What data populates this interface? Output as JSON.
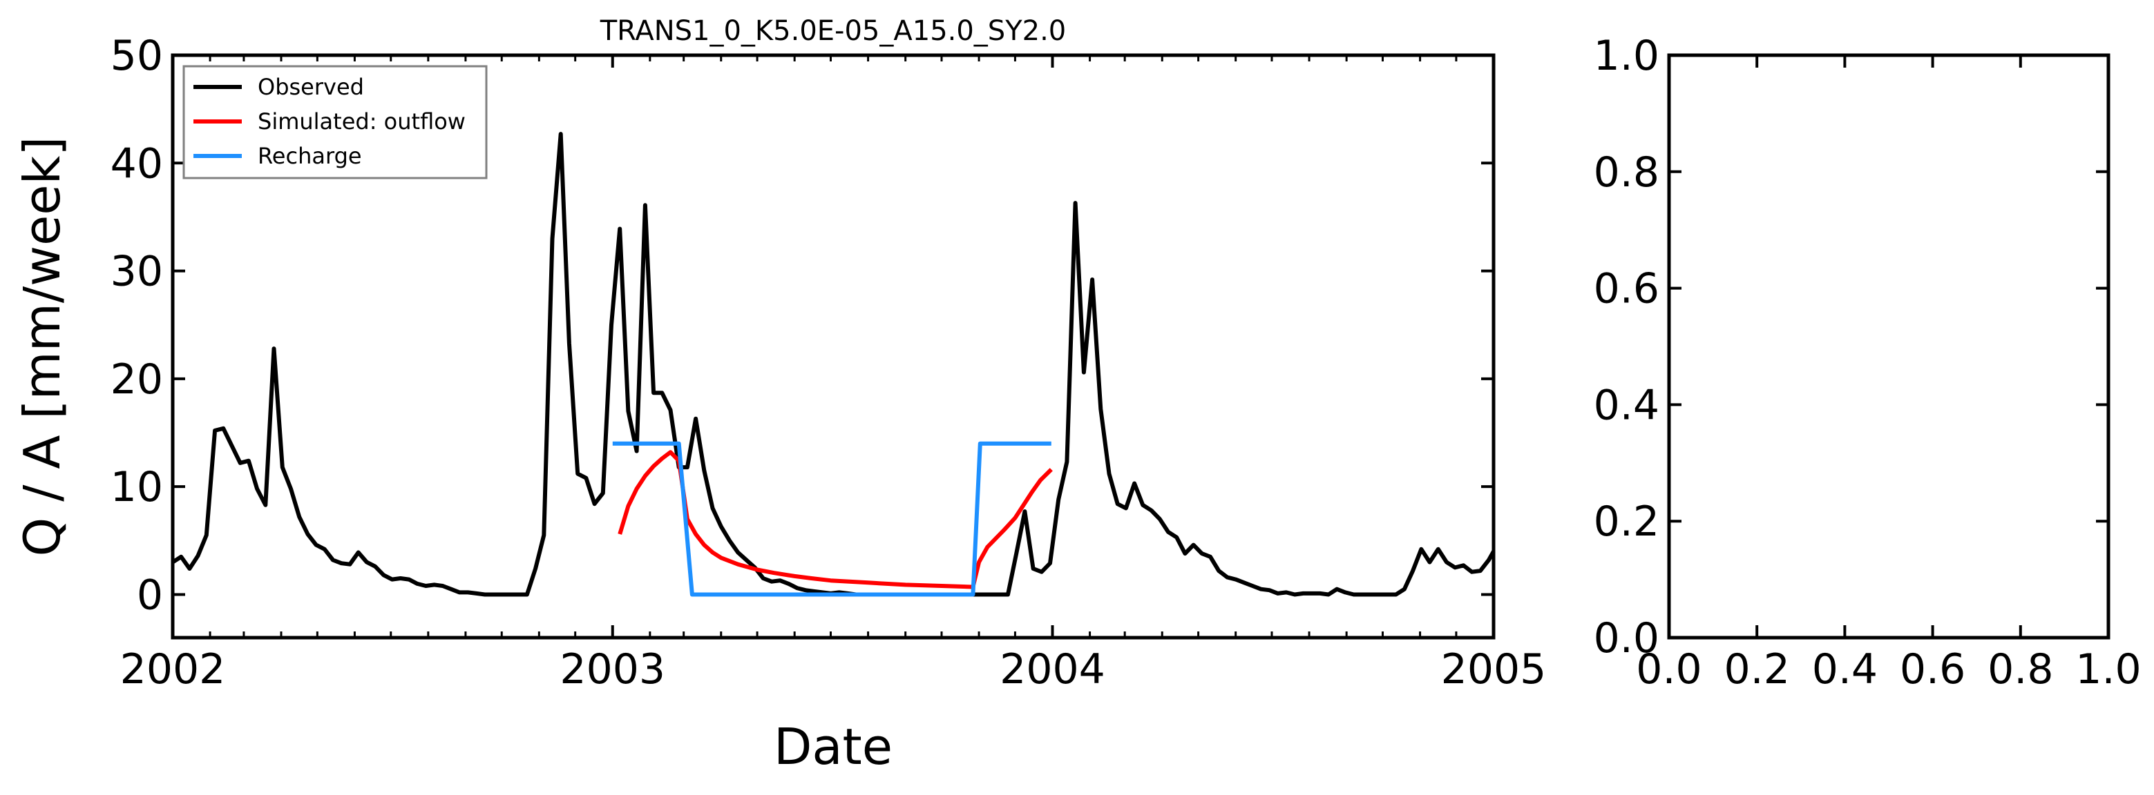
{
  "chart_data": [
    {
      "type": "line",
      "title": "TRANS1_0_K5.0E-05_A15.0_SY2.0",
      "xlabel": "Date",
      "ylabel": "Q / A [mm/week]",
      "xlim": [
        "2002-01-01",
        "2005-01-01"
      ],
      "ylim": [
        -4,
        50
      ],
      "x_ticks": [
        "2002",
        "2003",
        "2004",
        "2005"
      ],
      "y_ticks": [
        "0",
        "10",
        "20",
        "30",
        "40",
        "50"
      ],
      "y_tick_values": [
        0,
        10,
        20,
        30,
        40,
        50
      ],
      "legend_position": "upper-left",
      "series": [
        {
          "name": "Observed",
          "color": "#000000",
          "points": [
            [
              "2002-01-01",
              3.0
            ],
            [
              "2002-01-08",
              3.5
            ],
            [
              "2002-01-15",
              2.4
            ],
            [
              "2002-01-22",
              3.6
            ],
            [
              "2002-01-29",
              5.5
            ],
            [
              "2002-02-05",
              15.2
            ],
            [
              "2002-02-12",
              15.4
            ],
            [
              "2002-02-19",
              13.8
            ],
            [
              "2002-02-26",
              12.2
            ],
            [
              "2002-03-05",
              12.4
            ],
            [
              "2002-03-12",
              9.8
            ],
            [
              "2002-03-19",
              8.3
            ],
            [
              "2002-03-26",
              22.8
            ],
            [
              "2002-04-02",
              11.8
            ],
            [
              "2002-04-09",
              9.8
            ],
            [
              "2002-04-16",
              7.2
            ],
            [
              "2002-04-23",
              5.6
            ],
            [
              "2002-04-30",
              4.6
            ],
            [
              "2002-05-07",
              4.2
            ],
            [
              "2002-05-14",
              3.2
            ],
            [
              "2002-05-21",
              2.9
            ],
            [
              "2002-05-28",
              2.8
            ],
            [
              "2002-06-04",
              3.9
            ],
            [
              "2002-06-11",
              3.0
            ],
            [
              "2002-06-18",
              2.6
            ],
            [
              "2002-06-25",
              1.8
            ],
            [
              "2002-07-02",
              1.4
            ],
            [
              "2002-07-09",
              1.5
            ],
            [
              "2002-07-16",
              1.4
            ],
            [
              "2002-07-23",
              1.0
            ],
            [
              "2002-07-30",
              0.8
            ],
            [
              "2002-08-06",
              0.9
            ],
            [
              "2002-08-13",
              0.8
            ],
            [
              "2002-08-20",
              0.5
            ],
            [
              "2002-08-27",
              0.2
            ],
            [
              "2002-09-03",
              0.2
            ],
            [
              "2002-09-10",
              0.1
            ],
            [
              "2002-09-17",
              0.0
            ],
            [
              "2002-09-24",
              0.0
            ],
            [
              "2002-10-01",
              0.0
            ],
            [
              "2002-10-08",
              0.0
            ],
            [
              "2002-10-15",
              0.0
            ],
            [
              "2002-10-22",
              0.0
            ],
            [
              "2002-10-29",
              2.4
            ],
            [
              "2002-11-05",
              5.5
            ],
            [
              "2002-11-12",
              33.0
            ],
            [
              "2002-11-19",
              42.7
            ],
            [
              "2002-11-26",
              23.3
            ],
            [
              "2002-12-03",
              11.2
            ],
            [
              "2002-12-10",
              10.8
            ],
            [
              "2002-12-17",
              8.4
            ],
            [
              "2002-12-24",
              9.4
            ],
            [
              "2002-12-31",
              25.0
            ],
            [
              "2003-01-07",
              33.9
            ],
            [
              "2003-01-14",
              17.0
            ],
            [
              "2003-01-21",
              13.3
            ],
            [
              "2003-01-28",
              36.1
            ],
            [
              "2003-02-04",
              18.7
            ],
            [
              "2003-02-11",
              18.7
            ],
            [
              "2003-02-18",
              17.1
            ],
            [
              "2003-02-25",
              11.8
            ],
            [
              "2003-03-04",
              11.8
            ],
            [
              "2003-03-11",
              16.3
            ],
            [
              "2003-03-18",
              11.5
            ],
            [
              "2003-03-25",
              8.0
            ],
            [
              "2003-04-01",
              6.3
            ],
            [
              "2003-04-08",
              5.0
            ],
            [
              "2003-04-15",
              3.9
            ],
            [
              "2003-04-22",
              3.2
            ],
            [
              "2003-04-29",
              2.5
            ],
            [
              "2003-05-06",
              1.5
            ],
            [
              "2003-05-13",
              1.2
            ],
            [
              "2003-05-20",
              1.3
            ],
            [
              "2003-05-27",
              1.0
            ],
            [
              "2003-06-03",
              0.6
            ],
            [
              "2003-06-10",
              0.4
            ],
            [
              "2003-06-17",
              0.3
            ],
            [
              "2003-06-24",
              0.2
            ],
            [
              "2003-07-01",
              0.1
            ],
            [
              "2003-07-08",
              0.2
            ],
            [
              "2003-07-15",
              0.1
            ],
            [
              "2003-07-22",
              0.0
            ],
            [
              "2003-07-29",
              0.0
            ],
            [
              "2003-08-05",
              0.0
            ],
            [
              "2003-08-12",
              0.0
            ],
            [
              "2003-08-19",
              0.0
            ],
            [
              "2003-08-26",
              0.0
            ],
            [
              "2003-09-02",
              0.0
            ],
            [
              "2003-09-09",
              0.0
            ],
            [
              "2003-09-16",
              0.0
            ],
            [
              "2003-09-23",
              0.0
            ],
            [
              "2003-09-30",
              0.0
            ],
            [
              "2003-10-07",
              0.0
            ],
            [
              "2003-10-14",
              0.0
            ],
            [
              "2003-10-21",
              0.0
            ],
            [
              "2003-10-28",
              0.0
            ],
            [
              "2003-11-04",
              0.0
            ],
            [
              "2003-11-11",
              0.0
            ],
            [
              "2003-11-18",
              0.0
            ],
            [
              "2003-11-25",
              0.0
            ],
            [
              "2003-12-02",
              3.8
            ],
            [
              "2003-12-09",
              7.7
            ],
            [
              "2003-12-16",
              2.4
            ],
            [
              "2003-12-23",
              2.1
            ],
            [
              "2003-12-30",
              2.9
            ],
            [
              "2004-01-06",
              8.8
            ],
            [
              "2004-01-13",
              12.3
            ],
            [
              "2004-01-20",
              36.3
            ],
            [
              "2004-01-27",
              20.6
            ],
            [
              "2004-02-03",
              29.2
            ],
            [
              "2004-02-10",
              17.2
            ],
            [
              "2004-02-17",
              11.2
            ],
            [
              "2004-02-24",
              8.4
            ],
            [
              "2004-03-02",
              8.0
            ],
            [
              "2004-03-09",
              10.3
            ],
            [
              "2004-03-16",
              8.3
            ],
            [
              "2004-03-23",
              7.8
            ],
            [
              "2004-03-30",
              7.0
            ],
            [
              "2004-04-06",
              5.8
            ],
            [
              "2004-04-13",
              5.3
            ],
            [
              "2004-04-20",
              3.8
            ],
            [
              "2004-04-27",
              4.6
            ],
            [
              "2004-05-04",
              3.8
            ],
            [
              "2004-05-11",
              3.5
            ],
            [
              "2004-05-18",
              2.2
            ],
            [
              "2004-05-25",
              1.6
            ],
            [
              "2004-06-01",
              1.4
            ],
            [
              "2004-06-08",
              1.1
            ],
            [
              "2004-06-15",
              0.8
            ],
            [
              "2004-06-22",
              0.5
            ],
            [
              "2004-06-29",
              0.4
            ],
            [
              "2004-07-06",
              0.1
            ],
            [
              "2004-07-13",
              0.2
            ],
            [
              "2004-07-20",
              0.0
            ],
            [
              "2004-07-27",
              0.1
            ],
            [
              "2004-08-03",
              0.1
            ],
            [
              "2004-08-10",
              0.1
            ],
            [
              "2004-08-17",
              0.0
            ],
            [
              "2004-08-24",
              0.5
            ],
            [
              "2004-08-31",
              0.2
            ],
            [
              "2004-09-07",
              0.0
            ],
            [
              "2004-09-14",
              0.0
            ],
            [
              "2004-09-21",
              0.0
            ],
            [
              "2004-09-28",
              0.0
            ],
            [
              "2004-10-05",
              0.0
            ],
            [
              "2004-10-12",
              0.0
            ],
            [
              "2004-10-19",
              0.5
            ],
            [
              "2004-10-26",
              2.2
            ],
            [
              "2004-11-02",
              4.2
            ],
            [
              "2004-11-09",
              3.0
            ],
            [
              "2004-11-16",
              4.2
            ],
            [
              "2004-11-23",
              3.0
            ],
            [
              "2004-11-30",
              2.5
            ],
            [
              "2004-12-07",
              2.7
            ],
            [
              "2004-12-14",
              2.1
            ],
            [
              "2004-12-21",
              2.2
            ],
            [
              "2004-12-28",
              3.2
            ],
            [
              "2005-01-01",
              4.0
            ]
          ]
        },
        {
          "name": "Simulated: outflow",
          "color": "#ff0000",
          "points": [
            [
              "2003-01-07",
              5.6
            ],
            [
              "2003-01-14",
              8.2
            ],
            [
              "2003-01-21",
              9.8
            ],
            [
              "2003-01-28",
              11.0
            ],
            [
              "2003-02-04",
              11.9
            ],
            [
              "2003-02-11",
              12.6
            ],
            [
              "2003-02-18",
              13.2
            ],
            [
              "2003-02-25",
              12.4
            ],
            [
              "2003-03-04",
              7.0
            ],
            [
              "2003-03-11",
              5.6
            ],
            [
              "2003-03-18",
              4.6
            ],
            [
              "2003-03-25",
              3.9
            ],
            [
              "2003-04-01",
              3.4
            ],
            [
              "2003-04-15",
              2.8
            ],
            [
              "2003-05-01",
              2.3
            ],
            [
              "2003-05-15",
              2.0
            ],
            [
              "2003-06-01",
              1.7
            ],
            [
              "2003-06-15",
              1.5
            ],
            [
              "2003-07-01",
              1.3
            ],
            [
              "2003-08-01",
              1.1
            ],
            [
              "2003-09-01",
              0.9
            ],
            [
              "2003-10-01",
              0.8
            ],
            [
              "2003-10-27",
              0.7
            ],
            [
              "2003-11-01",
              3.0
            ],
            [
              "2003-11-08",
              4.4
            ],
            [
              "2003-11-15",
              5.2
            ],
            [
              "2003-11-22",
              6.0
            ],
            [
              "2003-12-01",
              7.1
            ],
            [
              "2003-12-08",
              8.3
            ],
            [
              "2003-12-15",
              9.5
            ],
            [
              "2003-12-22",
              10.6
            ],
            [
              "2003-12-31",
              11.6
            ]
          ]
        },
        {
          "name": "Recharge",
          "color": "#1e90ff",
          "points": [
            [
              "2003-01-01",
              14.0
            ],
            [
              "2003-02-25",
              14.0
            ],
            [
              "2003-03-08",
              0.0
            ],
            [
              "2003-10-27",
              0.0
            ],
            [
              "2003-11-02",
              14.0
            ],
            [
              "2003-12-31",
              14.0
            ]
          ]
        }
      ]
    },
    {
      "type": "line",
      "title": "",
      "xlim": [
        0.0,
        1.0
      ],
      "ylim": [
        0.0,
        1.0
      ],
      "x_ticks": [
        "0.0",
        "0.2",
        "0.4",
        "0.6",
        "0.8",
        "1.0"
      ],
      "y_ticks": [
        "0.0",
        "0.2",
        "0.4",
        "0.6",
        "0.8",
        "1.0"
      ],
      "series": []
    }
  ]
}
